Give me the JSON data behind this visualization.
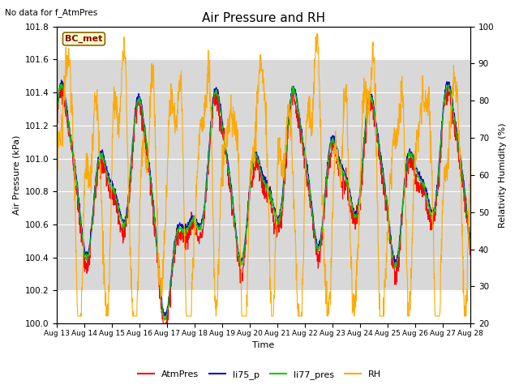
{
  "title": "Air Pressure and RH",
  "top_left_text": "No data for f_AtmPres",
  "annotation_text": "BC_met",
  "xlabel": "Time",
  "ylabel_left": "Air Pressure (kPa)",
  "ylabel_right": "Relativity Humidity (%)",
  "ylim_left": [
    100.0,
    101.8
  ],
  "ylim_right": [
    20,
    100
  ],
  "yticks_left": [
    100.0,
    100.2,
    100.4,
    100.6,
    100.8,
    101.0,
    101.2,
    101.4,
    101.6,
    101.8
  ],
  "yticks_right": [
    20,
    30,
    40,
    50,
    60,
    70,
    80,
    90,
    100
  ],
  "xtick_labels": [
    "Aug 13",
    "Aug 14",
    "Aug 15",
    "Aug 16",
    "Aug 17",
    "Aug 18",
    "Aug 19",
    "Aug 20",
    "Aug 21",
    "Aug 22",
    "Aug 23",
    "Aug 24",
    "Aug 25",
    "Aug 26",
    "Aug 27",
    "Aug 28"
  ],
  "colors": {
    "AtmPres": "#ff0000",
    "li75_p": "#0000cc",
    "li77_pres": "#00cc00",
    "RH": "#ffaa00"
  },
  "legend_labels": [
    "AtmPres",
    "li75_p",
    "li77_pres",
    "RH"
  ],
  "background_band_color": "#d8d8d8",
  "background_band_ylim": [
    100.2,
    101.6
  ],
  "figsize": [
    6.4,
    4.8
  ],
  "dpi": 100,
  "num_points": 1500
}
